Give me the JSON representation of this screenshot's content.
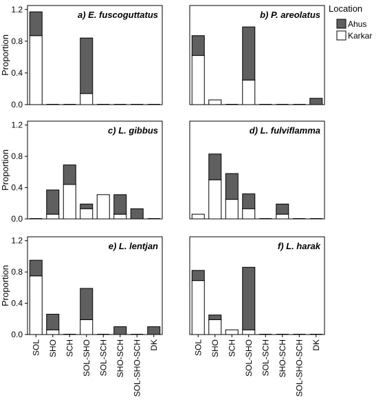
{
  "legend": {
    "title": "Location",
    "entries": [
      {
        "label": "Ahus",
        "color": "#5f5f5f"
      },
      {
        "label": "Karkar",
        "color": "#ffffff"
      }
    ]
  },
  "y_axis_label": "Proportion",
  "chart_data": {
    "type": "bar",
    "stacked": true,
    "ylabel": "Proportion",
    "ylim": [
      0,
      1.25
    ],
    "yticks": [
      "0.0",
      "0.4",
      "0.8",
      "1.2"
    ],
    "categories": [
      "SOL",
      "SHO",
      "SCH",
      "SOL-SHO",
      "SOL-SCH",
      "SHO-SCH",
      "SOL-SHO-SCH",
      "DK"
    ],
    "legend_position": "top-right (outside)",
    "panels": [
      {
        "title": "a) E. fuscoguttatus",
        "series": [
          {
            "name": "Karkar",
            "values": [
              0.87,
              0,
              0,
              0.14,
              0,
              0,
              0,
              0
            ]
          },
          {
            "name": "Ahus",
            "values": [
              0.3,
              0,
              0,
              0.7,
              0,
              0,
              0,
              0
            ]
          }
        ]
      },
      {
        "title": "b) P. areolatus",
        "series": [
          {
            "name": "Karkar",
            "values": [
              0.62,
              0.06,
              0,
              0.31,
              0,
              0,
              0,
              0
            ]
          },
          {
            "name": "Ahus",
            "values": [
              0.25,
              0,
              0,
              0.67,
              0,
              0,
              0,
              0.08
            ]
          }
        ]
      },
      {
        "title": "c) L. gibbus",
        "series": [
          {
            "name": "Karkar",
            "values": [
              0,
              0.06,
              0.44,
              0.13,
              0.31,
              0.06,
              0,
              0
            ]
          },
          {
            "name": "Ahus",
            "values": [
              0,
              0.31,
              0.25,
              0.06,
              0,
              0.25,
              0.13,
              0
            ]
          }
        ]
      },
      {
        "title": "d) L. fulviflamma",
        "series": [
          {
            "name": "Karkar",
            "values": [
              0.06,
              0.5,
              0.25,
              0.13,
              0,
              0.06,
              0,
              0
            ]
          },
          {
            "name": "Ahus",
            "values": [
              0,
              0.33,
              0.33,
              0.19,
              0,
              0.13,
              0,
              0
            ]
          }
        ]
      },
      {
        "title": "e) L. lentjan",
        "series": [
          {
            "name": "Karkar",
            "values": [
              0.75,
              0.06,
              0,
              0.19,
              0,
              0,
              0,
              0
            ]
          },
          {
            "name": "Ahus",
            "values": [
              0.2,
              0.2,
              0,
              0.4,
              0,
              0.1,
              0,
              0.1
            ]
          }
        ]
      },
      {
        "title": "f) L. harak",
        "series": [
          {
            "name": "Karkar",
            "values": [
              0.69,
              0.19,
              0.06,
              0.06,
              0,
              0,
              0,
              0
            ]
          },
          {
            "name": "Ahus",
            "values": [
              0.13,
              0.06,
              0,
              0.8,
              0,
              0,
              0,
              0
            ]
          }
        ]
      }
    ]
  }
}
